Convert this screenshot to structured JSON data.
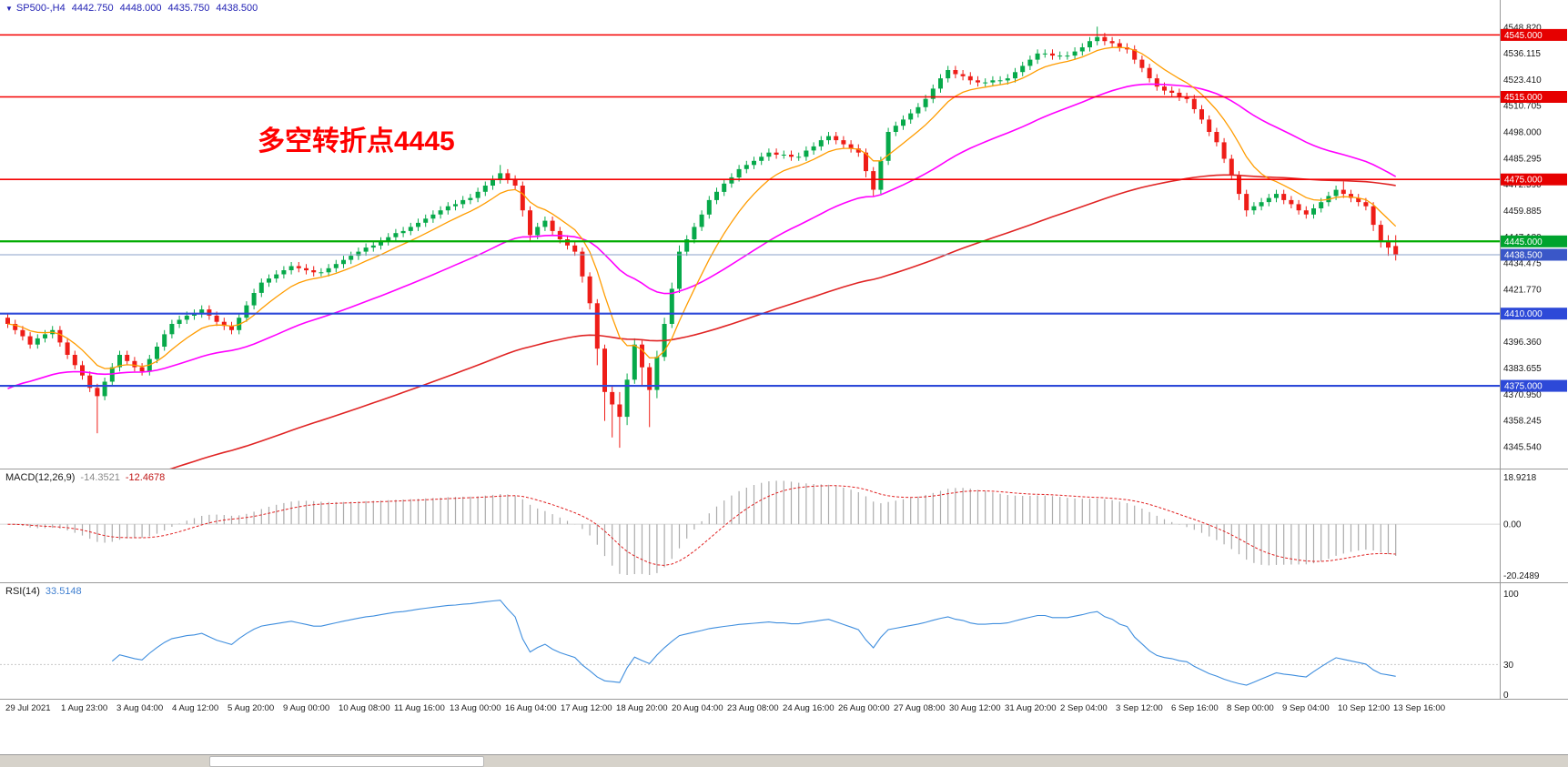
{
  "header": {
    "dropdown_icon": "▼",
    "symbol_period": "SP500-,H4",
    "open": "4442.750",
    "high": "4448.000",
    "low": "4435.750",
    "close": "4438.500"
  },
  "annotation": {
    "text": "多空转折点4445"
  },
  "indicators": {
    "macd": {
      "label": "MACD(12,26,9)",
      "value": "-14.3521",
      "signal_value": "-12.4678",
      "axis": [
        "18.9218",
        "0.00",
        "-20.2489"
      ]
    },
    "rsi": {
      "label": "RSI(14)",
      "value": "33.5148",
      "axis": [
        "100",
        "30",
        "0"
      ]
    }
  },
  "colors": {
    "up": "#07a94a",
    "down": "#ee1d18",
    "rsi": "#3f8ede",
    "macd_hist": "#ababab",
    "macd_signal": "#e02020",
    "axis_text": "#1a1a1a",
    "header_text": "#2323b4",
    "annotation": "#ff0000",
    "badges": {
      "resistance": "#e60000",
      "support": "#00a32e",
      "demand": "#2d49d8",
      "current": "#3a57c8"
    }
  },
  "price_axis": {
    "grid_values": [
      4548.82,
      4536.115,
      4523.41,
      4510.705,
      4498.0,
      4485.295,
      4472.59,
      4459.885,
      4447.18,
      4434.475,
      4421.77,
      4409.065,
      4396.36,
      4383.655,
      4370.95,
      4358.245,
      4345.54
    ],
    "badges": [
      {
        "label": "4545.000",
        "price": 4545,
        "type": "resistance"
      },
      {
        "label": "4515.000",
        "price": 4515,
        "type": "resistance"
      },
      {
        "label": "4475.000",
        "price": 4475,
        "type": "resistance"
      },
      {
        "label": "4445.000",
        "price": 4445,
        "type": "support"
      },
      {
        "label": "4438.500",
        "price": 4438.5,
        "type": "current"
      },
      {
        "label": "4410.000",
        "price": 4410,
        "type": "demand"
      },
      {
        "label": "4375.000",
        "price": 4375,
        "type": "demand"
      }
    ]
  },
  "time_axis": {
    "labels": [
      "29 Jul 2021",
      "1 Aug 23:00",
      "3 Aug 04:00",
      "4 Aug 12:00",
      "5 Aug 20:00",
      "9 Aug 00:00",
      "10 Aug 08:00",
      "11 Aug 16:00",
      "13 Aug 00:00",
      "16 Aug 04:00",
      "17 Aug 12:00",
      "18 Aug 20:00",
      "20 Aug 04:00",
      "23 Aug 08:00",
      "24 Aug 16:00",
      "26 Aug 00:00",
      "27 Aug 08:00",
      "30 Aug 12:00",
      "31 Aug 20:00",
      "2 Sep 04:00",
      "3 Sep 12:00",
      "6 Sep 16:00",
      "8 Sep 00:00",
      "9 Sep 04:00",
      "10 Sep 12:00",
      "13 Sep 16:00"
    ]
  },
  "chart_data": {
    "type": "candlestick",
    "symbol": "SP500-",
    "timeframe": "H4",
    "price_range": [
      4338,
      4554
    ],
    "current_price": 4438.5,
    "current_line_color": "#8ba0c8",
    "levels": [
      {
        "price": 4545,
        "color": "#f40000",
        "width": 1.5
      },
      {
        "price": 4515,
        "color": "#f40000",
        "width": 1.5
      },
      {
        "price": 4475,
        "color": "#f40000",
        "width": 1.6
      },
      {
        "price": 4445,
        "color": "#00ab00",
        "width": 2.2
      },
      {
        "price": 4410,
        "color": "#2d49d8",
        "width": 2.2
      },
      {
        "price": 4375,
        "color": "#2d49d8",
        "width": 2.2
      }
    ],
    "overlays": [
      {
        "name": "ma-slow",
        "color": "#e02424",
        "alpha": 0.016,
        "seed": 4310,
        "width": 1.6
      },
      {
        "name": "ma-mid",
        "color": "#ff00ff",
        "alpha": 0.05,
        "seed": 4372,
        "width": 1.6
      },
      {
        "name": "ma-fast",
        "color": "#ff9c00",
        "alpha": 0.2,
        "seed": null,
        "width": 1.3
      }
    ],
    "macd": {
      "fast": 12,
      "slow": 26,
      "signal": 9,
      "range": [
        -20.2489,
        18.9218
      ]
    },
    "rsi": {
      "period": 14,
      "level": 30,
      "range": [
        0,
        100
      ]
    },
    "candles": [
      [
        4408,
        4410,
        4403,
        4405
      ],
      [
        4405,
        4407,
        4400,
        4402
      ],
      [
        4402,
        4404,
        4397,
        4399
      ],
      [
        4399,
        4401,
        4393,
        4395
      ],
      [
        4395,
        4400,
        4393,
        4398
      ],
      [
        4398,
        4402,
        4396,
        4400
      ],
      [
        4400,
        4404,
        4398,
        4402
      ],
      [
        4402,
        4404,
        4394,
        4396
      ],
      [
        4396,
        4398,
        4388,
        4390
      ],
      [
        4390,
        4392,
        4383,
        4385
      ],
      [
        4385,
        4387,
        4378,
        4380
      ],
      [
        4380,
        4382,
        4372,
        4374
      ],
      [
        4374,
        4376,
        4352,
        4370
      ],
      [
        4370,
        4379,
        4368,
        4377
      ],
      [
        4377,
        4386,
        4375,
        4384
      ],
      [
        4384,
        4392,
        4382,
        4390
      ],
      [
        4390,
        4392,
        4385,
        4387
      ],
      [
        4387,
        4389,
        4382,
        4384
      ],
      [
        4384,
        4386,
        4380,
        4382
      ],
      [
        4382,
        4390,
        4380,
        4388
      ],
      [
        4388,
        4396,
        4386,
        4394
      ],
      [
        4394,
        4402,
        4392,
        4400
      ],
      [
        4400,
        4407,
        4398,
        4405
      ],
      [
        4405,
        4409,
        4403,
        4407
      ],
      [
        4407,
        4411,
        4405,
        4409
      ],
      [
        4409,
        4412,
        4407,
        4410
      ],
      [
        4410,
        4414,
        4408,
        4412
      ],
      [
        4412,
        4414,
        4407,
        4409
      ],
      [
        4409,
        4411,
        4404,
        4406
      ],
      [
        4406,
        4408,
        4402,
        4404
      ],
      [
        4404,
        4406,
        4400,
        4402
      ],
      [
        4402,
        4410,
        4400,
        4408
      ],
      [
        4408,
        4416,
        4406,
        4414
      ],
      [
        4414,
        4422,
        4412,
        4420
      ],
      [
        4420,
        4427,
        4418,
        4425
      ],
      [
        4425,
        4429,
        4423,
        4427
      ],
      [
        4427,
        4431,
        4425,
        4429
      ],
      [
        4429,
        4433,
        4427,
        4431
      ],
      [
        4431,
        4435,
        4429,
        4433
      ],
      [
        4433,
        4435,
        4430,
        4432
      ],
      [
        4432,
        4434,
        4429,
        4431
      ],
      [
        4431,
        4433,
        4428,
        4430
      ],
      [
        4430,
        4432,
        4428,
        4430
      ],
      [
        4430,
        4434,
        4428,
        4432
      ],
      [
        4432,
        4436,
        4430,
        4434
      ],
      [
        4434,
        4438,
        4432,
        4436
      ],
      [
        4436,
        4440,
        4434,
        4438
      ],
      [
        4438,
        4442,
        4436,
        4440
      ],
      [
        4440,
        4444,
        4438,
        4442
      ],
      [
        4442,
        4445,
        4440,
        4443
      ],
      [
        4443,
        4447,
        4441,
        4445
      ],
      [
        4445,
        4449,
        4443,
        4447
      ],
      [
        4447,
        4451,
        4445,
        4449
      ],
      [
        4449,
        4452,
        4447,
        4450
      ],
      [
        4450,
        4454,
        4448,
        4452
      ],
      [
        4452,
        4456,
        4450,
        4454
      ],
      [
        4454,
        4458,
        4452,
        4456
      ],
      [
        4456,
        4460,
        4454,
        4458
      ],
      [
        4458,
        4462,
        4456,
        4460
      ],
      [
        4460,
        4464,
        4458,
        4462
      ],
      [
        4462,
        4465,
        4460,
        4463
      ],
      [
        4463,
        4467,
        4461,
        4465
      ],
      [
        4465,
        4468,
        4463,
        4466
      ],
      [
        4466,
        4471,
        4464,
        4469
      ],
      [
        4469,
        4474,
        4467,
        4472
      ],
      [
        4472,
        4477,
        4470,
        4475
      ],
      [
        4475,
        4482,
        4473,
        4478
      ],
      [
        4478,
        4480,
        4473,
        4475
      ],
      [
        4475,
        4477,
        4470,
        4472
      ],
      [
        4472,
        4474,
        4457,
        4460
      ],
      [
        4460,
        4462,
        4445,
        4448
      ],
      [
        4448,
        4454,
        4446,
        4452
      ],
      [
        4452,
        4457,
        4450,
        4455
      ],
      [
        4455,
        4457,
        4448,
        4450
      ],
      [
        4450,
        4452,
        4444,
        4446
      ],
      [
        4446,
        4448,
        4441,
        4443
      ],
      [
        4443,
        4445,
        4438,
        4440
      ],
      [
        4440,
        4442,
        4425,
        4428
      ],
      [
        4428,
        4430,
        4412,
        4415
      ],
      [
        4415,
        4417,
        4385,
        4393
      ],
      [
        4393,
        4395,
        4358,
        4372
      ],
      [
        4372,
        4375,
        4350,
        4366
      ],
      [
        4366,
        4372,
        4345,
        4360
      ],
      [
        4360,
        4381,
        4356,
        4378
      ],
      [
        4378,
        4398,
        4376,
        4395
      ],
      [
        4395,
        4397,
        4375,
        4384
      ],
      [
        4384,
        4386,
        4355,
        4373
      ],
      [
        4373,
        4392,
        4369,
        4389
      ],
      [
        4389,
        4408,
        4387,
        4405
      ],
      [
        4405,
        4425,
        4403,
        4422
      ],
      [
        4422,
        4443,
        4420,
        4440
      ],
      [
        4440,
        4448,
        4438,
        4446
      ],
      [
        4446,
        4454,
        4444,
        4452
      ],
      [
        4452,
        4460,
        4450,
        4458
      ],
      [
        4458,
        4467,
        4456,
        4465
      ],
      [
        4465,
        4471,
        4463,
        4469
      ],
      [
        4469,
        4475,
        4467,
        4473
      ],
      [
        4473,
        4478,
        4471,
        4476
      ],
      [
        4476,
        4482,
        4474,
        4480
      ],
      [
        4480,
        4484,
        4478,
        4482
      ],
      [
        4482,
        4486,
        4480,
        4484
      ],
      [
        4484,
        4488,
        4482,
        4486
      ],
      [
        4486,
        4490,
        4484,
        4488
      ],
      [
        4488,
        4490,
        4485,
        4487
      ],
      [
        4487,
        4489,
        4485,
        4487
      ],
      [
        4487,
        4489,
        4484,
        4486
      ],
      [
        4486,
        4488,
        4484,
        4486
      ],
      [
        4486,
        4491,
        4484,
        4489
      ],
      [
        4489,
        4493,
        4487,
        4491
      ],
      [
        4491,
        4496,
        4489,
        4494
      ],
      [
        4494,
        4498,
        4492,
        4496
      ],
      [
        4496,
        4498,
        4492,
        4494
      ],
      [
        4494,
        4496,
        4490,
        4492
      ],
      [
        4492,
        4494,
        4488,
        4490
      ],
      [
        4490,
        4492,
        4486,
        4488
      ],
      [
        4488,
        4490,
        4476,
        4479
      ],
      [
        4479,
        4481,
        4467,
        4470
      ],
      [
        4470,
        4486,
        4468,
        4484
      ],
      [
        4484,
        4500,
        4482,
        4498
      ],
      [
        4498,
        4503,
        4496,
        4501
      ],
      [
        4501,
        4506,
        4499,
        4504
      ],
      [
        4504,
        4509,
        4502,
        4507
      ],
      [
        4507,
        4512,
        4505,
        4510
      ],
      [
        4510,
        4516,
        4508,
        4514
      ],
      [
        4514,
        4521,
        4512,
        4519
      ],
      [
        4519,
        4526,
        4517,
        4524
      ],
      [
        4524,
        4530,
        4522,
        4528
      ],
      [
        4528,
        4530,
        4524,
        4526
      ],
      [
        4526,
        4528,
        4523,
        4525
      ],
      [
        4525,
        4527,
        4521,
        4523
      ],
      [
        4523,
        4525,
        4520,
        4522
      ],
      [
        4522,
        4524,
        4520,
        4522
      ],
      [
        4522,
        4525,
        4520,
        4523
      ],
      [
        4523,
        4525,
        4521,
        4523
      ],
      [
        4523,
        4526,
        4521,
        4524
      ],
      [
        4524,
        4529,
        4522,
        4527
      ],
      [
        4527,
        4532,
        4525,
        4530
      ],
      [
        4530,
        4535,
        4528,
        4533
      ],
      [
        4533,
        4538,
        4531,
        4536
      ],
      [
        4536,
        4538,
        4534,
        4536
      ],
      [
        4536,
        4538,
        4533,
        4535
      ],
      [
        4535,
        4537,
        4533,
        4535
      ],
      [
        4535,
        4537,
        4533,
        4535
      ],
      [
        4535,
        4539,
        4533,
        4537
      ],
      [
        4537,
        4541,
        4535,
        4539
      ],
      [
        4539,
        4544,
        4537,
        4542
      ],
      [
        4542,
        4549,
        4540,
        4544
      ],
      [
        4544,
        4546,
        4540,
        4542
      ],
      [
        4542,
        4544,
        4539,
        4541
      ],
      [
        4541,
        4543,
        4537,
        4539
      ],
      [
        4539,
        4541,
        4536,
        4538
      ],
      [
        4538,
        4540,
        4531,
        4533
      ],
      [
        4533,
        4535,
        4527,
        4529
      ],
      [
        4529,
        4531,
        4522,
        4524
      ],
      [
        4524,
        4526,
        4518,
        4520
      ],
      [
        4520,
        4522,
        4516,
        4518
      ],
      [
        4518,
        4520,
        4515,
        4517
      ],
      [
        4517,
        4519,
        4513,
        4515
      ],
      [
        4515,
        4517,
        4512,
        4514
      ],
      [
        4514,
        4516,
        4507,
        4509
      ],
      [
        4509,
        4511,
        4502,
        4504
      ],
      [
        4504,
        4506,
        4496,
        4498
      ],
      [
        4498,
        4500,
        4491,
        4493
      ],
      [
        4493,
        4495,
        4483,
        4485
      ],
      [
        4485,
        4487,
        4475,
        4477
      ],
      [
        4477,
        4479,
        4465,
        4468
      ],
      [
        4468,
        4470,
        4457,
        4460
      ],
      [
        4460,
        4464,
        4458,
        4462
      ],
      [
        4462,
        4466,
        4460,
        4464
      ],
      [
        4464,
        4468,
        4462,
        4466
      ],
      [
        4466,
        4470,
        4464,
        4468
      ],
      [
        4468,
        4470,
        4463,
        4465
      ],
      [
        4465,
        4467,
        4461,
        4463
      ],
      [
        4463,
        4465,
        4458,
        4460
      ],
      [
        4460,
        4462,
        4456,
        4458
      ],
      [
        4458,
        4463,
        4456,
        4461
      ],
      [
        4461,
        4466,
        4459,
        4464
      ],
      [
        4464,
        4469,
        4462,
        4467
      ],
      [
        4467,
        4472,
        4465,
        4470
      ],
      [
        4470,
        4474,
        4466,
        4468
      ],
      [
        4468,
        4470,
        4464,
        4466
      ],
      [
        4466,
        4468,
        4462,
        4464
      ],
      [
        4464,
        4466,
        4460,
        4462
      ],
      [
        4462,
        4464,
        4450,
        4453
      ],
      [
        4453,
        4455,
        4442,
        4445
      ],
      [
        4445,
        4448,
        4438,
        4442
      ],
      [
        4442.75,
        4448,
        4435.75,
        4438.5
      ]
    ]
  }
}
